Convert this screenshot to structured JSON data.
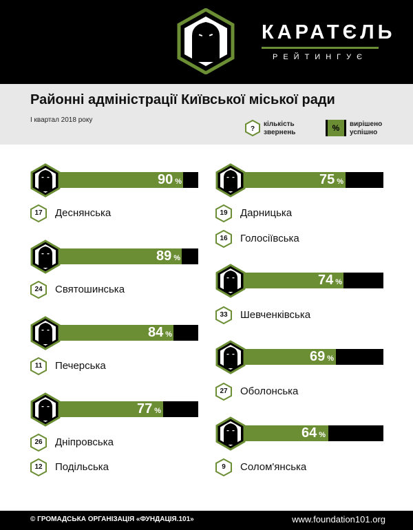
{
  "brand": {
    "name": "КАРАТЄЛЬ",
    "subtitle": "РЕЙТИНГУЄ",
    "accent_color": "#6b8d33"
  },
  "header": {
    "title": "Районні адміністрації Київської міської ради",
    "period": "І квартал 2018 року"
  },
  "legend": {
    "count_symbol": "?",
    "count_label_line1": "кількість",
    "count_label_line2": "звернень",
    "percent_symbol": "%",
    "percent_label_line1": "вирішено",
    "percent_label_line2": "успішно"
  },
  "districts": [
    {
      "name": "Деснянська",
      "count": "17",
      "percent": 90
    },
    {
      "name": "Святошинська",
      "count": "24",
      "percent": 89
    },
    {
      "name": "Печерська",
      "count": "11",
      "percent": 84
    },
    {
      "name": "Дніпровська",
      "count": "26",
      "percent": 77
    },
    {
      "name": "Подільська",
      "count": "12",
      "percent": null
    },
    {
      "name": "Дарницька",
      "count": "19",
      "percent": 75
    },
    {
      "name": "Голосіївська",
      "count": "16",
      "percent": null
    },
    {
      "name": "Шевченківська",
      "count": "33",
      "percent": 74
    },
    {
      "name": "Оболонська",
      "count": "27",
      "percent": 69
    },
    {
      "name": "Солом'янська",
      "count": "9",
      "percent": 64
    }
  ],
  "bars": [
    {
      "value": "90",
      "unit": "%",
      "fraction": 0.9
    },
    {
      "value": "89",
      "unit": "%",
      "fraction": 0.89
    },
    {
      "value": "84",
      "unit": "%",
      "fraction": 0.84
    },
    {
      "value": "77",
      "unit": "%",
      "fraction": 0.77
    },
    {
      "value": "75",
      "unit": "%",
      "fraction": 0.75
    },
    {
      "value": "74",
      "unit": "%",
      "fraction": 0.74
    },
    {
      "value": "69",
      "unit": "%",
      "fraction": 0.69
    },
    {
      "value": "64",
      "unit": "%",
      "fraction": 0.64
    }
  ],
  "footer": {
    "copyright": "© ГРОМАДСЬКА ОРГАНІЗАЦІЯ «ФУНДАЦІЯ.101»",
    "website": "www.foundation101.org"
  }
}
